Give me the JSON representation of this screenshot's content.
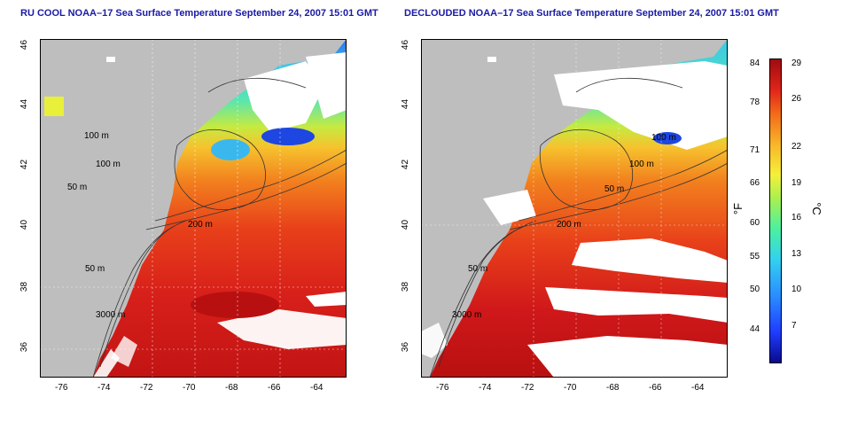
{
  "titles": {
    "left": "RU COOL NOAA–17 Sea Surface Temperature September 24, 2007 15:01 GMT",
    "right": "DECLOUDED NOAA–17 Sea Surface Temperature September 24, 2007 15:01 GMT"
  },
  "axes": {
    "lon_ticks": [
      "-76",
      "-74",
      "-72",
      "-70",
      "-68",
      "-66",
      "-64"
    ],
    "lat_ticks": [
      "46",
      "44",
      "42",
      "40",
      "38",
      "36"
    ]
  },
  "contour_labels": {
    "m50_a": "50 m",
    "m50_b": "50 m",
    "m100_a": "100 m",
    "m100_b": "100 m",
    "m200": "200 m",
    "m3000": "3000 m"
  },
  "colorbar": {
    "fahrenheit_ticks": [
      "84",
      "78",
      "71",
      "66",
      "60",
      "55",
      "50",
      "44"
    ],
    "celsius_ticks": [
      "29",
      "26",
      "22",
      "19",
      "16",
      "13",
      "10",
      "7"
    ],
    "fahrenheit_unit": "°F",
    "celsius_unit": "°C"
  },
  "colors": {
    "land": "#bebebe",
    "cloud": "#ffffff",
    "title": "#1a1aa6",
    "sst_warm": "#d8201a",
    "sst_cool": "#3fd0e6"
  }
}
